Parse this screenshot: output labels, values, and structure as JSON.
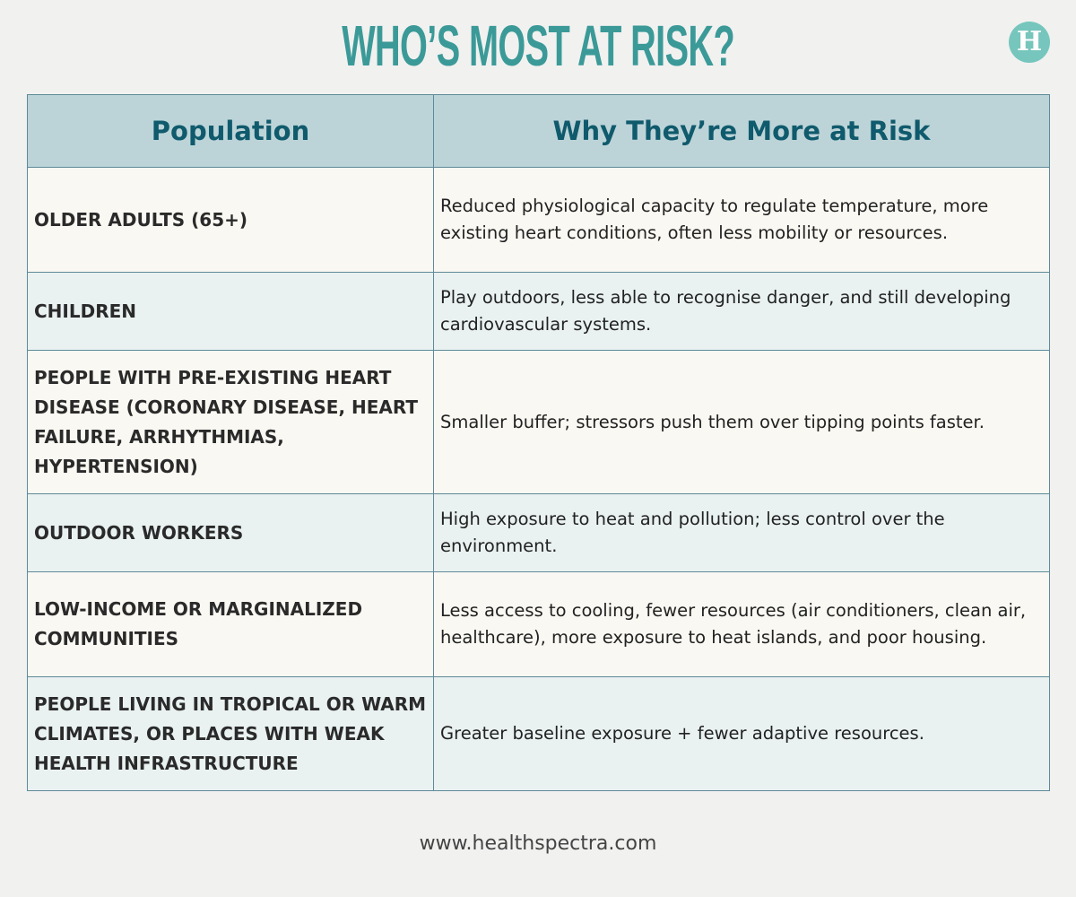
{
  "title": "WHO’S MOST AT RISK?",
  "logo": {
    "letter": "H",
    "color": "#76c6bd"
  },
  "table": {
    "headers": [
      "Population",
      "Why They’re More at Risk"
    ],
    "rows": [
      {
        "population": "Older adults (65+)",
        "reason": "Reduced physiological capacity to regulate temperature, more existing heart conditions, often less mobility or resources."
      },
      {
        "population": "Children",
        "reason": "Play outdoors, less able to recognise danger, and still developing cardiovascular systems."
      },
      {
        "population": "People with pre-existing heart disease (coronary disease, heart failure, arrhythmias, hypertension)",
        "reason": "Smaller buffer; stressors push them over tipping points faster."
      },
      {
        "population": "Outdoor workers",
        "reason": "High exposure to heat and pollution; less control over the environment."
      },
      {
        "population": "Low-income or marginalized communities",
        "reason": "Less access to cooling, fewer resources (air conditioners, clean air, healthcare), more exposure to heat islands, and poor housing."
      },
      {
        "population": "People living in tropical or warm climates, or places with weak health infrastructure",
        "reason": "Greater baseline exposure + fewer adaptive resources."
      }
    ]
  },
  "footer": "www.healthspectra.com",
  "colors": {
    "title": "#3b9a98",
    "header_bg": "#bcd4d8",
    "header_text": "#0f5a6c"
  }
}
